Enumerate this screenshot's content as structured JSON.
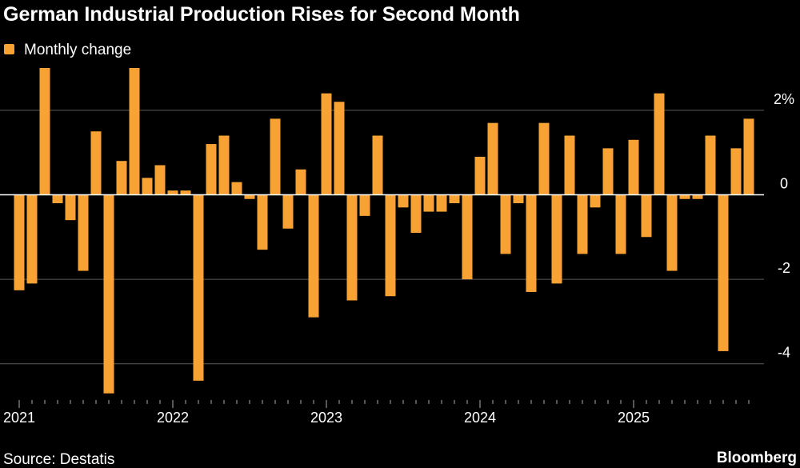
{
  "chart_data": {
    "type": "bar",
    "title": "German Industrial Production Rises for Second Month",
    "categories": [
      "2021",
      null,
      null,
      null,
      null,
      null,
      null,
      null,
      null,
      null,
      null,
      null,
      "2022",
      null,
      null,
      null,
      null,
      null,
      null,
      null,
      null,
      null,
      null,
      null,
      "2023",
      null,
      null,
      null,
      null,
      null,
      null,
      null,
      null,
      null,
      null,
      null,
      "2024",
      null,
      null,
      null,
      null,
      null,
      null,
      null,
      null,
      null,
      null,
      null,
      "2025",
      null,
      null,
      null,
      null,
      null,
      null,
      null,
      null,
      null
    ],
    "series": [
      {
        "name": "Monthly change",
        "color": "#f7a233",
        "values": [
          -2.26,
          -2.1,
          3.0,
          -0.2,
          -0.6,
          -1.8,
          1.5,
          -4.7,
          0.8,
          3.0,
          0.4,
          0.7,
          0.1,
          0.1,
          -4.4,
          1.2,
          1.4,
          0.3,
          -0.1,
          -1.3,
          1.8,
          -0.8,
          0.6,
          -2.9,
          2.4,
          2.2,
          -2.5,
          -0.5,
          1.4,
          -2.4,
          -0.3,
          -0.9,
          -0.4,
          -0.4,
          -0.2,
          -2.0,
          0.9,
          1.7,
          -1.4,
          -0.2,
          -2.3,
          1.7,
          -2.1,
          1.4,
          -1.4,
          -0.3,
          1.1,
          -1.4,
          1.3,
          -1.0,
          2.4,
          -1.8,
          -0.1,
          -0.1,
          1.4,
          -3.7,
          1.1,
          1.8
        ]
      }
    ],
    "ylim": [
      -4.8,
      3.0
    ],
    "yticks": [
      {
        "value": 2,
        "label": "2%"
      },
      0,
      -2,
      -4
    ],
    "grid": true,
    "source": "Source: Destatis",
    "credit": "Bloomberg"
  }
}
